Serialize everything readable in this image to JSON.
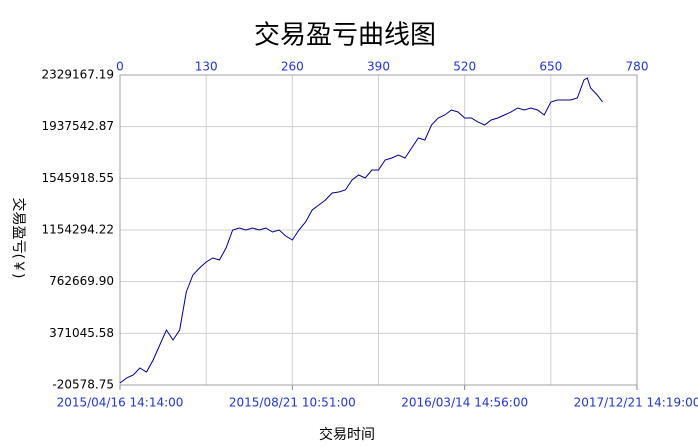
{
  "chart_data": {
    "type": "line",
    "title": "交易盈亏曲线图",
    "x_label": "交易时间",
    "y_label": "交易盈亏(￥)",
    "x": [
      0,
      10,
      20,
      30,
      40,
      50,
      60,
      70,
      80,
      90,
      100,
      110,
      120,
      130,
      140,
      150,
      160,
      170,
      180,
      190,
      200,
      210,
      220,
      230,
      240,
      250,
      260,
      270,
      280,
      290,
      300,
      310,
      320,
      330,
      340,
      350,
      360,
      370,
      380,
      390,
      400,
      410,
      420,
      430,
      440,
      450,
      460,
      470,
      480,
      490,
      500,
      510,
      520,
      530,
      540,
      550,
      560,
      570,
      580,
      590,
      600,
      610,
      620,
      630,
      640,
      650,
      660,
      670,
      680,
      690,
      700,
      705,
      710,
      720,
      728
    ],
    "series": [
      {
        "color": "#00008b",
        "values": [
          -5400,
          32500,
          55200,
          108300,
          78000,
          168900,
          282600,
          396300,
          320500,
          396300,
          684400,
          813200,
          866300,
          911800,
          942100,
          926900,
          1017900,
          1154300,
          1169500,
          1154300,
          1169500,
          1154300,
          1169500,
          1139200,
          1154300,
          1108800,
          1078500,
          1154300,
          1215000,
          1305900,
          1343800,
          1381700,
          1434800,
          1442400,
          1457500,
          1533300,
          1571200,
          1548500,
          1609100,
          1609100,
          1684900,
          1700100,
          1722800,
          1700100,
          1775900,
          1851700,
          1836500,
          1950200,
          2003300,
          2026000,
          2063900,
          2048800,
          2003300,
          2003300,
          1973000,
          1950200,
          1988100,
          2003300,
          2026000,
          2048800,
          2079100,
          2063900,
          2079100,
          2063900,
          2026000,
          2124600,
          2139800,
          2139800,
          2139800,
          2154900,
          2291300,
          2306500,
          2230700,
          2177600,
          2124600
        ]
      }
    ],
    "xlim": [
      0,
      780
    ],
    "xticks": [
      0,
      130,
      260,
      390,
      520,
      650,
      780
    ],
    "bottom_xticks": [
      {
        "value": 0,
        "label": "2015/04/16 14:14:00"
      },
      {
        "value": 260,
        "label": "2015/08/21 10:51:00"
      },
      {
        "value": 520,
        "label": "2016/03/14 14:56:00"
      },
      {
        "value": 780,
        "label": "2017/12/21 14:19:00"
      }
    ],
    "ylim": [
      -20578.75,
      2329167.19
    ],
    "yticks": [
      -20578.75,
      371045.58,
      {
        "value": 762669.9,
        "label": "762669.90"
      },
      1154294.22,
      1545918.55,
      1937542.87,
      2329167.19
    ],
    "grid": true
  }
}
